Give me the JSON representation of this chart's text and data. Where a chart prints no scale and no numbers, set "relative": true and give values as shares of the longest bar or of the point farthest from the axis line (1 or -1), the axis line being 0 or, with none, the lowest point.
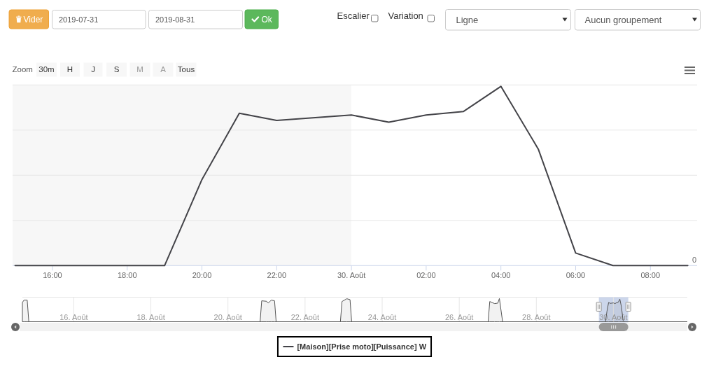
{
  "chart_data": [
    {
      "type": "other",
      "annotations": [
        "Vider",
        "2019-07-31",
        "2019-08-31",
        "Ok",
        "Escalier",
        "Variation",
        "Ligne",
        "Aucun groupement"
      ]
    },
    {
      "type": "line",
      "x": [
        "2019-08-29T15:00",
        "2019-08-29T16:00",
        "2019-08-29T17:00",
        "2019-08-29T18:00",
        "2019-08-29T19:00",
        "2019-08-29T20:00",
        "2019-08-29T21:00",
        "2019-08-29T22:00",
        "2019-08-30T00:00",
        "2019-08-30T01:00",
        "2019-08-30T02:00",
        "2019-08-30T03:00",
        "2019-08-30T04:00",
        "2019-08-30T05:00",
        "2019-08-30T06:00",
        "2019-08-30T07:00",
        "2019-08-30T08:00",
        "2019-08-30T09:00"
      ],
      "series": [
        {
          "name": "[Maison][Prise moto][Puissance] W",
          "color": "#434348",
          "values": [
            0,
            0,
            0,
            0,
            0,
            0.48,
            0.85,
            0.81,
            0.84,
            0.8,
            0.84,
            0.86,
            1,
            0.65,
            0.07,
            0,
            0,
            0
          ]
        }
      ],
      "relative": true,
      "xlim": [
        "2019-08-29T14:56",
        "2019-08-30T09:15"
      ],
      "xticks": [
        {
          "value": "2019-08-29T16:00",
          "label": "16:00"
        },
        {
          "value": "2019-08-29T18:00",
          "label": "18:00"
        },
        {
          "value": "2019-08-29T20:00",
          "label": "20:00"
        },
        {
          "value": "2019-08-29T22:00",
          "label": "22:00"
        },
        {
          "value": "2019-08-30T00:00",
          "label": "30. Août"
        },
        {
          "value": "2019-08-30T02:00",
          "label": "02:00"
        },
        {
          "value": "2019-08-30T04:00",
          "label": "04:00"
        },
        {
          "value": "2019-08-30T06:00",
          "label": "06:00"
        },
        {
          "value": "2019-08-30T08:00",
          "label": "08:00"
        }
      ],
      "grid": "y",
      "legend": "bottom",
      "bands": [
        {
          "axis": "x",
          "from": "2019-08-29T14:56",
          "to": "2019-08-30T00:00",
          "color": "#f7f7f7"
        }
      ],
      "annotations": [
        "Zoom",
        "30m",
        "H",
        "J",
        "S",
        "M",
        "A",
        "Tous",
        "0"
      ]
    },
    {
      "type": "area",
      "x": [
        "2019-08-14T16:00",
        "2019-08-14T17:00",
        "2019-08-14T19:00",
        "2019-08-14T20:00",
        "2019-08-20T20:00",
        "2019-08-20T21:00",
        "2019-08-21T00:00",
        "2019-08-21T01:00",
        "2019-08-21T03:00",
        "2019-08-21T05:00",
        "2019-08-21T06:00",
        "2019-08-22T22:00",
        "2019-08-22T23:00",
        "2019-08-23T02:00",
        "2019-08-23T04:00",
        "2019-08-23T05:00",
        "2019-08-26T18:00",
        "2019-08-26T19:00",
        "2019-08-26T22:00",
        "2019-08-27T00:00",
        "2019-08-27T01:00",
        "2019-08-27T03:00",
        "2019-08-29T19:00",
        "2019-08-29T20:00",
        "2019-08-29T21:00",
        "2019-08-29T22:00",
        "2019-08-30T00:00",
        "2019-08-30T01:00",
        "2019-08-30T02:00",
        "2019-08-30T03:00",
        "2019-08-30T04:00",
        "2019-08-30T05:00",
        "2019-08-30T06:00",
        "2019-08-30T07:00",
        "2019-08-31T22:00"
      ],
      "values": [
        0.83,
        0.93,
        0.93,
        0,
        0,
        0.9,
        0.88,
        0.8,
        0.93,
        0.9,
        0,
        0,
        0.87,
        0.99,
        0.95,
        0,
        0,
        0.87,
        0.78,
        0.8,
        1,
        0,
        0,
        0.46,
        0.83,
        0.79,
        0.81,
        0.78,
        0.82,
        0.84,
        0.97,
        0.64,
        0.06,
        0,
        0
      ],
      "color": "#555555",
      "relative": true,
      "xlim": [
        "2019-08-14T16:00",
        "2019-08-31T22:00"
      ],
      "xticks": [
        {
          "value": "2019-08-16",
          "label": "16. Août"
        },
        {
          "value": "2019-08-18",
          "label": "18. Août"
        },
        {
          "value": "2019-08-20",
          "label": "20. Août"
        },
        {
          "value": "2019-08-22",
          "label": "22. Août"
        },
        {
          "value": "2019-08-24",
          "label": "24. Août"
        },
        {
          "value": "2019-08-26",
          "label": "26. Août"
        },
        {
          "value": "2019-08-28",
          "label": "28. Août"
        },
        {
          "value": "2019-08-30",
          "label": "30. Août"
        }
      ],
      "grid": "x",
      "bands": [
        {
          "axis": "x",
          "from": "2019-08-29T14:56",
          "to": "2019-08-30T09:15",
          "color": "#ccd6eb"
        }
      ]
    }
  ]
}
